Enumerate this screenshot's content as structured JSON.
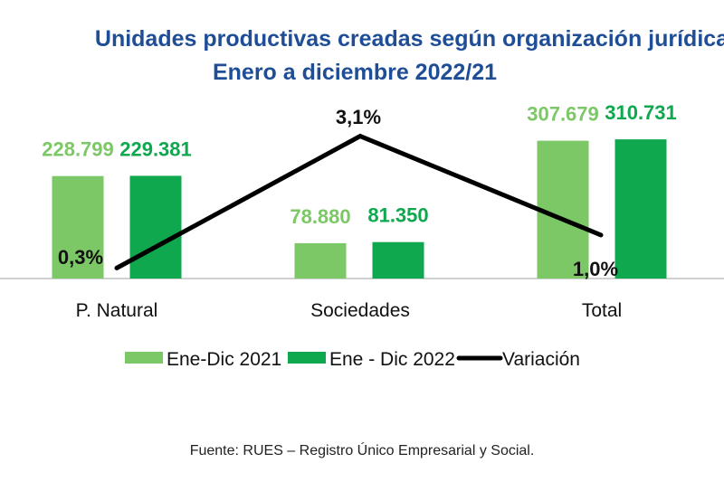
{
  "chart_data": {
    "type": "bar",
    "title": "Unidades productivas creadas según organización jurídica",
    "subtitle": "Enero a diciembre 2022/21",
    "categories": [
      "P. Natural",
      "Sociedades",
      "Total"
    ],
    "series": [
      {
        "name": "Ene-Dic 2021",
        "type": "bar",
        "color": "#7cc766",
        "values": [
          228799,
          78880,
          307679
        ],
        "labels": [
          "228.799",
          "78.880",
          "307.679"
        ]
      },
      {
        "name": "Ene - Dic 2022",
        "type": "bar",
        "color": "#0fa84f",
        "values": [
          229381,
          81350,
          310731
        ],
        "labels": [
          "229.381",
          "81.350",
          "310.731"
        ]
      },
      {
        "name": "Variación",
        "type": "line",
        "axis": "secondary",
        "color": "#000000",
        "values": [
          0.3,
          3.1,
          1.0
        ],
        "labels": [
          "0,3%",
          "3,1%",
          "1,0%"
        ]
      }
    ],
    "ylim": [
      0,
      420000
    ],
    "y2lim": [
      0,
      4.07
    ],
    "xlabel": "",
    "ylabel": "",
    "grid": false,
    "legend": {
      "position": "bottom",
      "entries": [
        "Ene-Dic 2021",
        "Ene - Dic 2022",
        "Variación"
      ]
    },
    "source": "Fuente: RUES – Registro Único Empresarial y Social."
  }
}
